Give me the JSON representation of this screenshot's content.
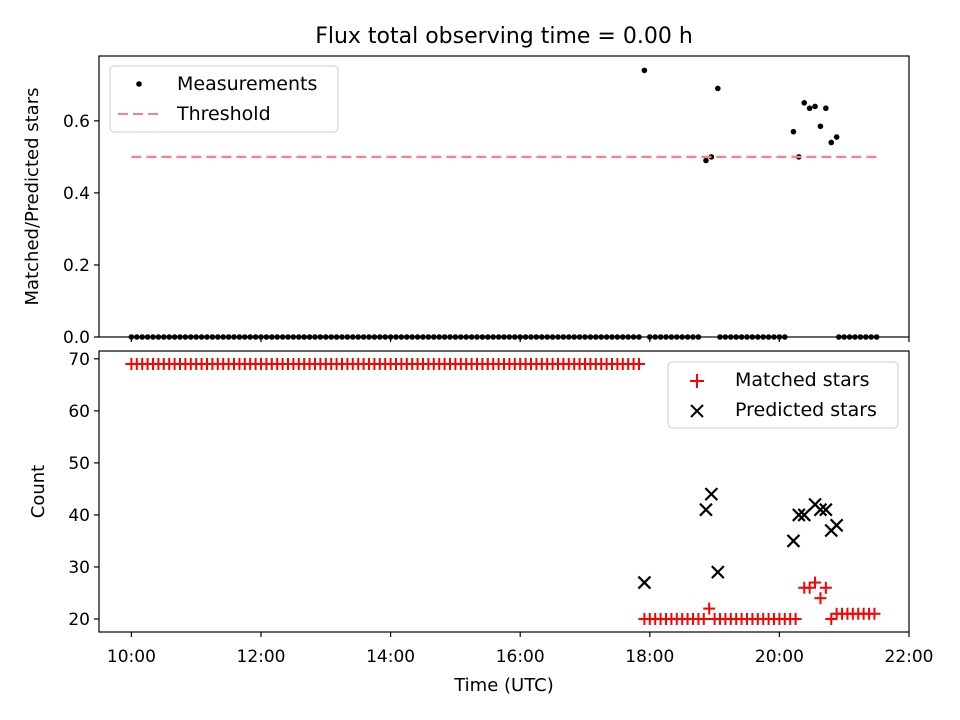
{
  "figure": {
    "title": "Flux total observing time = 0.00 h"
  },
  "chart_data": [
    {
      "type": "scatter",
      "ylabel": "Matched/Predicted stars",
      "xlim": [
        "09:30",
        "22:00"
      ],
      "ylim": [
        0,
        0.78
      ],
      "yticks": [
        0.0,
        0.2,
        0.4,
        0.6
      ],
      "ytick_labels": [
        "0.0",
        "0.2",
        "0.4",
        "0.6"
      ],
      "xticks": [
        "10:00",
        "12:00",
        "14:00",
        "16:00",
        "18:00",
        "20:00",
        "22:00"
      ],
      "legend_position": "upper left",
      "series": [
        {
          "name": "Measurements",
          "marker": "dot",
          "color": "#000000",
          "zero_runs": [
            {
              "start": "10:00",
              "end": "17:50",
              "step_min": 5
            },
            {
              "start": "18:00",
              "end": "18:45",
              "step_min": 5
            },
            {
              "start": "19:05",
              "end": "20:05",
              "step_min": 5
            },
            {
              "start": "20:55",
              "end": "21:30",
              "step_min": 5
            }
          ],
          "points": [
            {
              "x": "17:55",
              "y": 0.74
            },
            {
              "x": "18:52",
              "y": 0.49
            },
            {
              "x": "18:57",
              "y": 0.5
            },
            {
              "x": "19:03",
              "y": 0.69
            },
            {
              "x": "20:13",
              "y": 0.57
            },
            {
              "x": "20:18",
              "y": 0.5
            },
            {
              "x": "20:23",
              "y": 0.65
            },
            {
              "x": "20:28",
              "y": 0.635
            },
            {
              "x": "20:33",
              "y": 0.64
            },
            {
              "x": "20:38",
              "y": 0.585
            },
            {
              "x": "20:43",
              "y": 0.635
            },
            {
              "x": "20:48",
              "y": 0.54
            },
            {
              "x": "20:53",
              "y": 0.555
            }
          ]
        },
        {
          "name": "Threshold",
          "marker": "dashed-line",
          "color": "#ff8080",
          "x": [
            "10:00",
            "21:30"
          ],
          "y": [
            0.5,
            0.5
          ]
        }
      ]
    },
    {
      "type": "scatter",
      "xlabel": "Time (UTC)",
      "ylabel": "Count",
      "xlim": [
        "09:30",
        "22:00"
      ],
      "ylim": [
        17.5,
        71.5
      ],
      "yticks": [
        20,
        30,
        40,
        50,
        60,
        70
      ],
      "ytick_labels": [
        "20",
        "30",
        "40",
        "50",
        "60",
        "70"
      ],
      "xticks": [
        "10:00",
        "12:00",
        "14:00",
        "16:00",
        "18:00",
        "20:00",
        "22:00"
      ],
      "xtick_labels": [
        "10:00",
        "12:00",
        "14:00",
        "16:00",
        "18:00",
        "20:00",
        "22:00"
      ],
      "legend_position": "upper right",
      "series": [
        {
          "name": "Matched stars",
          "marker": "plus",
          "color": "#ff0000",
          "runs": [
            {
              "start": "10:00",
              "end": "17:50",
              "step_min": 5,
              "y": 69
            },
            {
              "start": "17:55",
              "end": "18:50",
              "step_min": 5,
              "y": 20
            },
            {
              "start": "19:05",
              "end": "20:15",
              "step_min": 5,
              "y": 20
            },
            {
              "start": "20:53",
              "end": "21:28",
              "step_min": 5,
              "y": 21
            }
          ],
          "points": [
            {
              "x": "18:55",
              "y": 22
            },
            {
              "x": "19:00",
              "y": 20
            },
            {
              "x": "20:23",
              "y": 26
            },
            {
              "x": "20:28",
              "y": 26
            },
            {
              "x": "20:33",
              "y": 27
            },
            {
              "x": "20:38",
              "y": 24
            },
            {
              "x": "20:43",
              "y": 26
            },
            {
              "x": "20:48",
              "y": 20
            }
          ]
        },
        {
          "name": "Predicted stars",
          "marker": "x",
          "color": "#000000",
          "points": [
            {
              "x": "17:55",
              "y": 27
            },
            {
              "x": "18:52",
              "y": 41
            },
            {
              "x": "18:57",
              "y": 44
            },
            {
              "x": "19:03",
              "y": 29
            },
            {
              "x": "20:13",
              "y": 35
            },
            {
              "x": "20:18",
              "y": 40
            },
            {
              "x": "20:23",
              "y": 40
            },
            {
              "x": "20:33",
              "y": 42
            },
            {
              "x": "20:38",
              "y": 41
            },
            {
              "x": "20:43",
              "y": 41
            },
            {
              "x": "20:48",
              "y": 37
            },
            {
              "x": "20:53",
              "y": 38
            }
          ]
        }
      ]
    }
  ]
}
